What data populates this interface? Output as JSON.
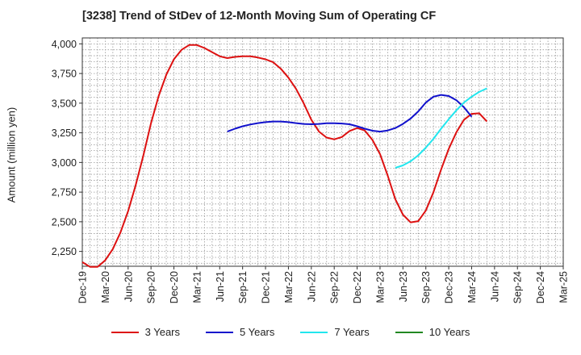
{
  "chart_data": {
    "type": "line",
    "title": "[3238]  Trend of StDev of 12-Month Moving Sum of Operating CF",
    "ylabel": "Amount (million yen)",
    "xlabel": "",
    "ylim": [
      2125,
      4050
    ],
    "yticks": [
      2250,
      2500,
      2750,
      3000,
      3250,
      3500,
      3750,
      4000
    ],
    "ytick_labels": [
      "2,250",
      "2,500",
      "2,750",
      "3,000",
      "3,250",
      "3,500",
      "3,750",
      "4,000"
    ],
    "x_ticks": [
      "Dec-19",
      "Mar-20",
      "Jun-20",
      "Sep-20",
      "Dec-20",
      "Mar-21",
      "Jun-21",
      "Sep-21",
      "Dec-21",
      "Mar-22",
      "Jun-22",
      "Sep-22",
      "Dec-22",
      "Mar-23",
      "Jun-23",
      "Sep-23",
      "Dec-23",
      "Mar-24",
      "Jun-24",
      "Sep-24",
      "Dec-24",
      "Mar-25"
    ],
    "grid": true,
    "legend_position": "bottom",
    "series": [
      {
        "name": "3 Years",
        "color": "#dd1111",
        "start_index": 0,
        "values": [
          2160,
          2120,
          2120,
          2175,
          2270,
          2410,
          2590,
          2810,
          3060,
          3330,
          3560,
          3740,
          3870,
          3950,
          3990,
          3990,
          3965,
          3930,
          3895,
          3880,
          3890,
          3895,
          3895,
          3885,
          3870,
          3845,
          3790,
          3715,
          3620,
          3500,
          3360,
          3260,
          3210,
          3195,
          3215,
          3265,
          3290,
          3270,
          3190,
          3070,
          2890,
          2690,
          2560,
          2495,
          2505,
          2595,
          2750,
          2940,
          3115,
          3255,
          3360,
          3410,
          3415,
          3345
        ]
      },
      {
        "name": "5 Years",
        "color": "#1111cc",
        "start_index": 19,
        "values": [
          3260,
          3285,
          3305,
          3320,
          3332,
          3340,
          3345,
          3345,
          3340,
          3332,
          3325,
          3322,
          3325,
          3330,
          3330,
          3328,
          3322,
          3305,
          3285,
          3268,
          3260,
          3270,
          3290,
          3325,
          3370,
          3430,
          3505,
          3555,
          3570,
          3560,
          3525,
          3465,
          3385
        ]
      },
      {
        "name": "7 Years",
        "color": "#22e6ee",
        "start_index": 41,
        "values": [
          2955,
          2975,
          3010,
          3060,
          3125,
          3200,
          3285,
          3365,
          3440,
          3505,
          3555,
          3595,
          3625
        ]
      },
      {
        "name": "10 Years",
        "color": "#228822",
        "start_index": 0,
        "values": []
      }
    ]
  }
}
